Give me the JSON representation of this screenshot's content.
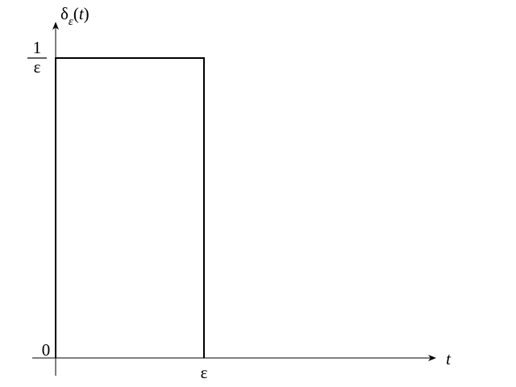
{
  "y_axis": {
    "label": {
      "symbol": "δ",
      "subscript": "ε",
      "open": "(",
      "variable": "t",
      "close": ")"
    },
    "top_tick": {
      "numerator": "1",
      "denominator": "ε"
    },
    "origin": "0"
  },
  "x_axis": {
    "label": "t",
    "tick": "ε"
  }
}
